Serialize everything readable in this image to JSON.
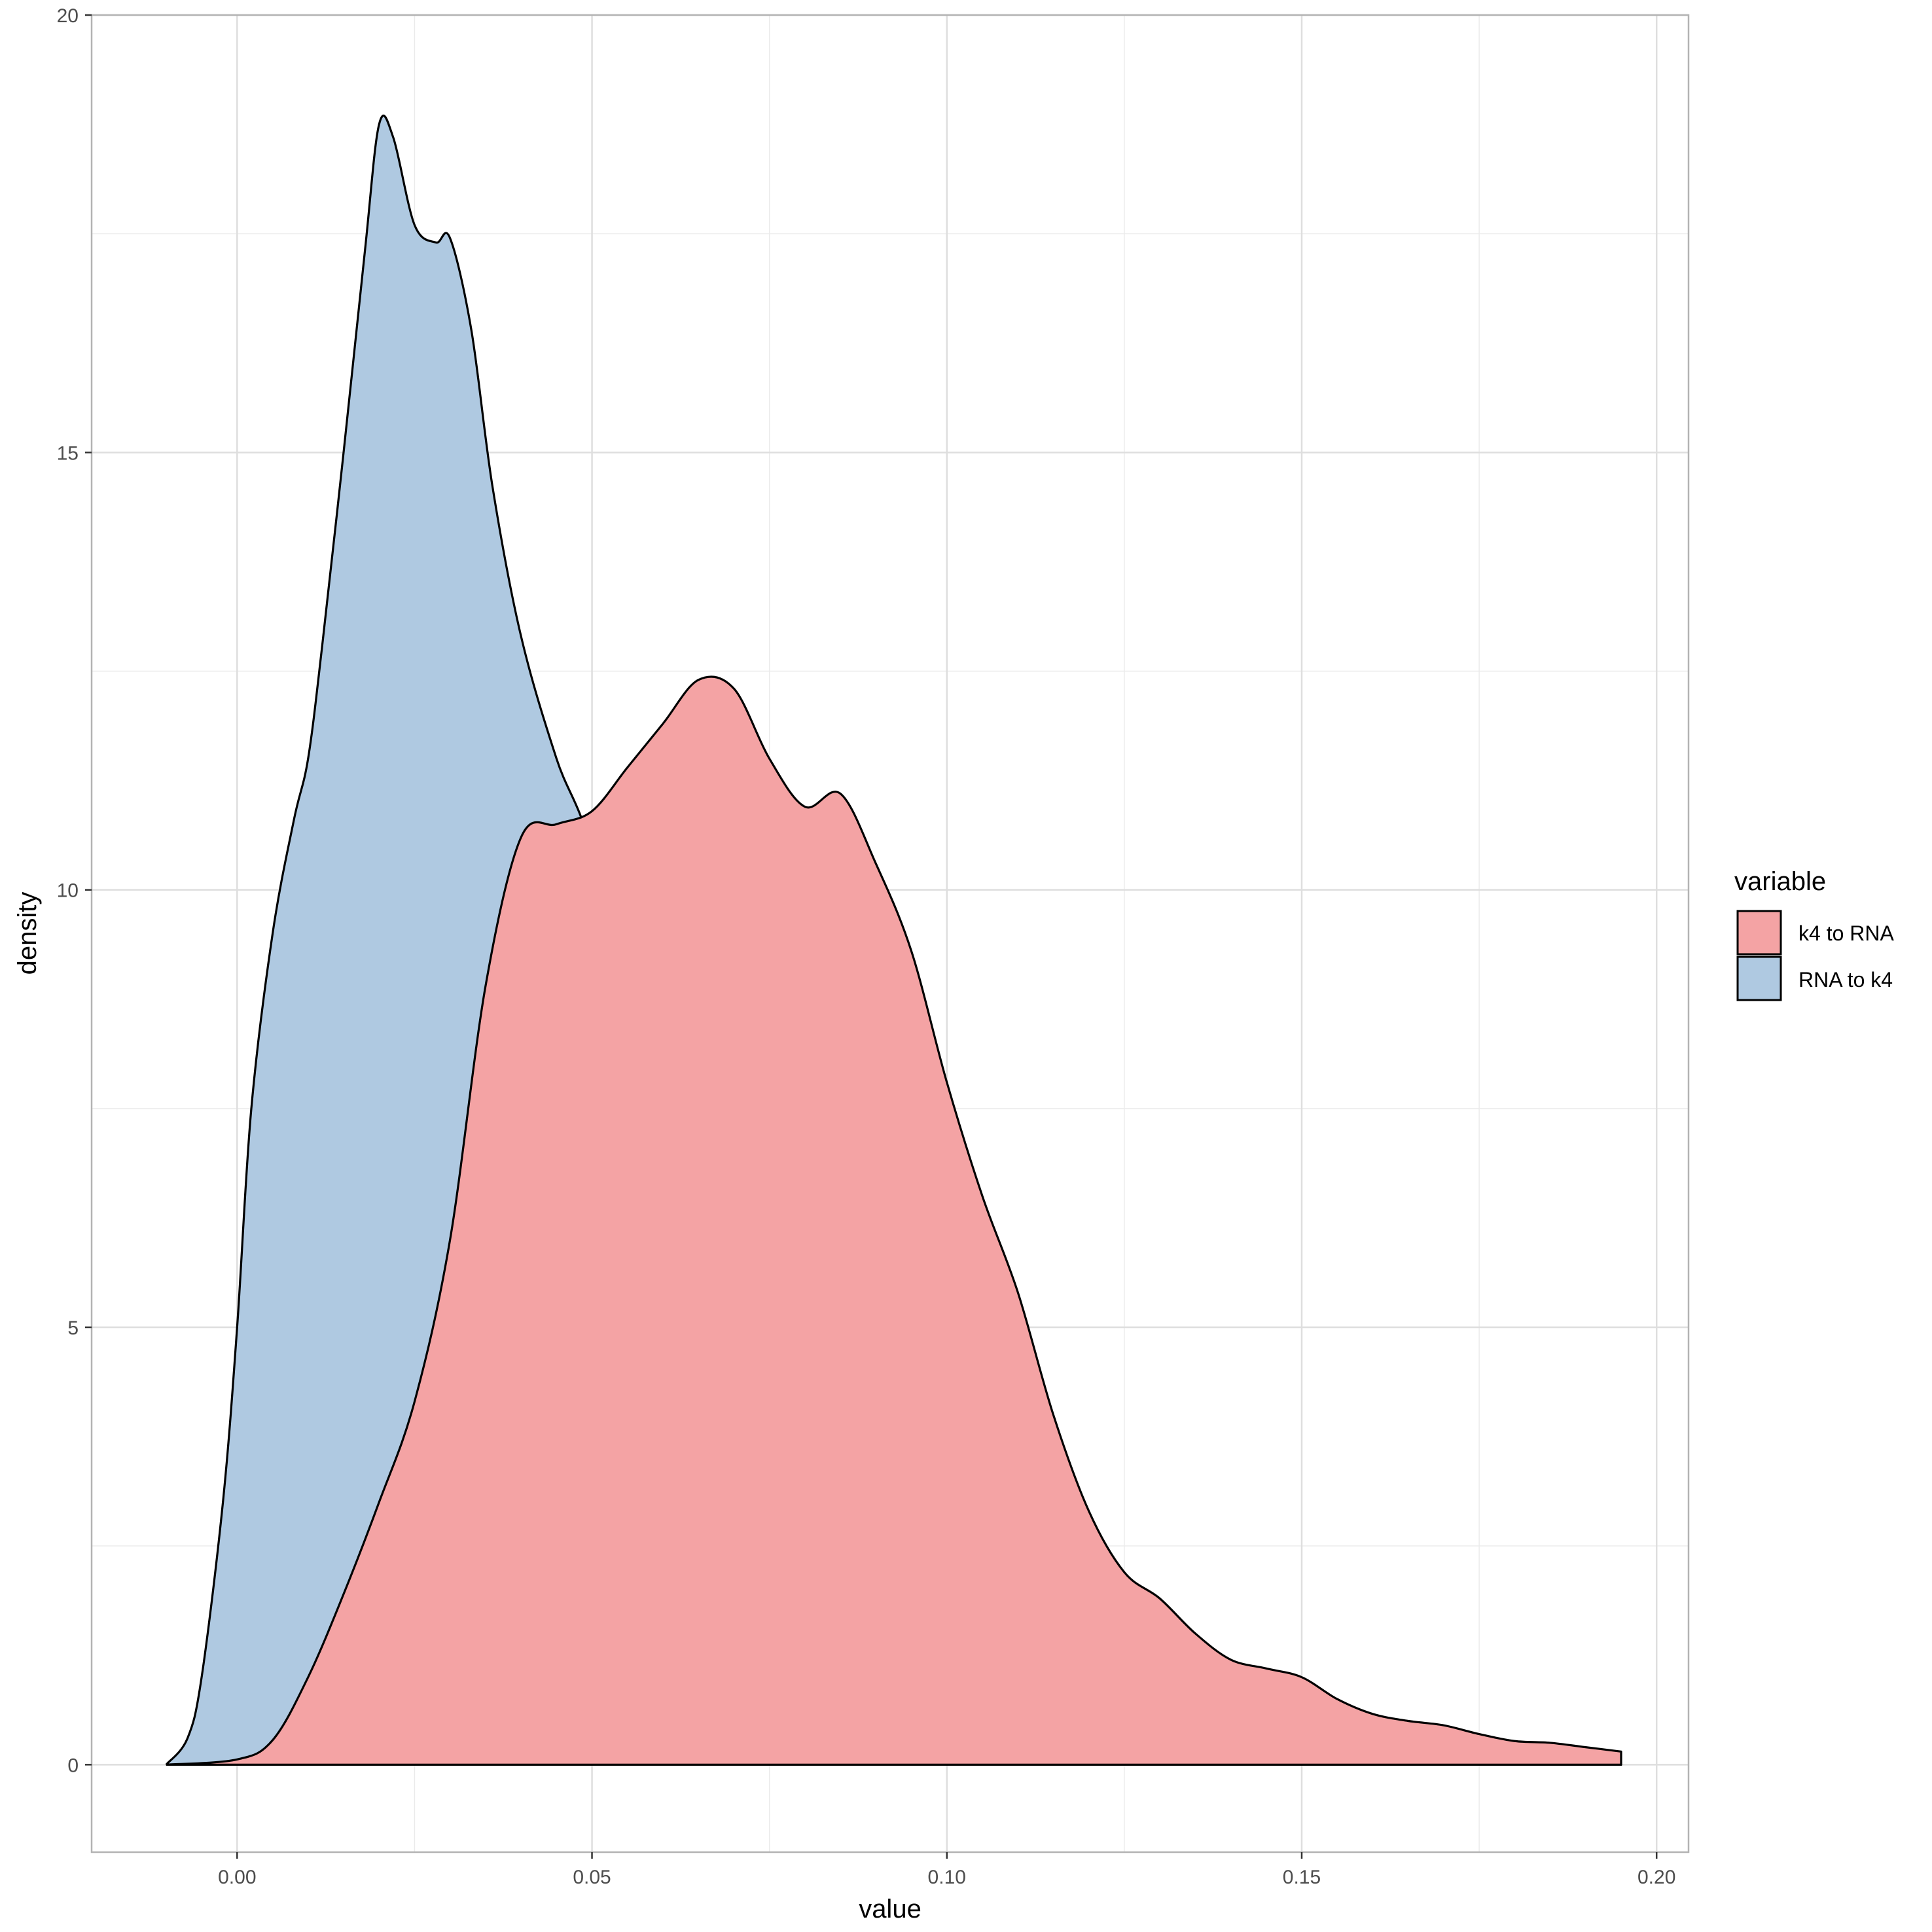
{
  "chart_data": {
    "type": "area",
    "subtype": "density",
    "xlabel": "value",
    "ylabel": "density",
    "xlim": [
      -0.0205,
      0.2045
    ],
    "ylim": [
      -1.0,
      20.0
    ],
    "x_ticks": [
      0.0,
      0.05,
      0.1,
      0.15,
      0.2
    ],
    "x_tick_labels": [
      "0.00",
      "0.05",
      "0.10",
      "0.15",
      "0.20"
    ],
    "y_ticks": [
      0,
      5,
      10,
      15,
      20
    ],
    "y_tick_labels": [
      "0",
      "5",
      "10",
      "15",
      "20"
    ],
    "grid": true,
    "legend": {
      "title": "variable",
      "position": "right",
      "entries": [
        "k4 to RNA",
        "RNA to k4"
      ]
    },
    "series": [
      {
        "name": "k4 to RNA",
        "color": "#F4A3A4",
        "x": [
          -0.01,
          0.0,
          0.005,
          0.01,
          0.015,
          0.02,
          0.025,
          0.03,
          0.035,
          0.04,
          0.045,
          0.05,
          0.055,
          0.06,
          0.065,
          0.07,
          0.075,
          0.08,
          0.085,
          0.09,
          0.095,
          0.1,
          0.105,
          0.11,
          0.115,
          0.12,
          0.125,
          0.13,
          0.135,
          0.14,
          0.145,
          0.15,
          0.155,
          0.16,
          0.165,
          0.17,
          0.175,
          0.18,
          0.185,
          0.19,
          0.195
        ],
        "y": [
          0.0,
          0.06,
          0.28,
          1.0,
          1.95,
          3.0,
          4.15,
          6.0,
          8.9,
          10.6,
          10.75,
          10.9,
          11.4,
          11.9,
          12.4,
          12.3,
          11.5,
          10.95,
          11.1,
          10.3,
          9.3,
          7.8,
          6.5,
          5.4,
          4.0,
          2.9,
          2.2,
          1.9,
          1.5,
          1.2,
          1.1,
          1.0,
          0.75,
          0.58,
          0.5,
          0.45,
          0.35,
          0.27,
          0.25,
          0.2,
          0.15
        ]
      },
      {
        "name": "RNA to k4",
        "color": "#AFC9E1",
        "x": [
          -0.01,
          -0.007,
          -0.005,
          -0.002,
          0.0,
          0.002,
          0.005,
          0.008,
          0.01,
          0.012,
          0.015,
          0.018,
          0.02,
          0.022,
          0.025,
          0.028,
          0.03,
          0.033,
          0.036,
          0.04,
          0.045,
          0.05,
          0.055,
          0.06,
          0.065,
          0.07,
          0.075,
          0.08,
          0.085,
          0.09,
          0.095,
          0.1,
          0.105,
          0.11,
          0.115,
          0.12,
          0.125,
          0.13,
          0.135,
          0.14,
          0.145,
          0.15,
          0.16,
          0.17,
          0.18,
          0.195
        ],
        "y": [
          0.0,
          0.3,
          1.0,
          3.0,
          5.0,
          7.5,
          9.5,
          10.8,
          11.5,
          12.8,
          15.0,
          17.3,
          18.75,
          18.6,
          17.6,
          17.4,
          17.45,
          16.4,
          14.6,
          12.9,
          11.5,
          10.4,
          7.9,
          7.2,
          5.7,
          4.05,
          2.45,
          1.95,
          1.8,
          1.4,
          1.0,
          0.55,
          0.45,
          0.35,
          0.4,
          0.65,
          0.3,
          0.02,
          0.0,
          0.0,
          0.0,
          0.0,
          0.0,
          0.0,
          0.0,
          0.0
        ]
      }
    ]
  }
}
